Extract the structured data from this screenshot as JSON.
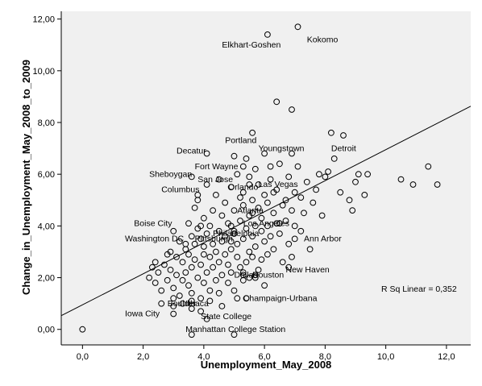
{
  "chart_data": {
    "type": "scatter",
    "title": "",
    "xlabel": "Unemployment_May_2008",
    "ylabel": "Change_in_Unemployment_May_2008_to_2009",
    "xlim": [
      -0.7,
      12.8
    ],
    "ylim": [
      -0.6,
      12.3
    ],
    "x_ticks": [
      "0,0",
      "2,0",
      "4,0",
      "6,0",
      "8,0",
      "10,0",
      "12,0"
    ],
    "y_ticks": [
      "0,00",
      "2,00",
      "4,00",
      "6,00",
      "8,00",
      "10,00",
      "12,00"
    ],
    "x_tick_values": [
      0,
      2,
      4,
      6,
      8,
      10,
      12
    ],
    "y_tick_values": [
      0,
      2,
      4,
      6,
      8,
      10,
      12
    ],
    "background_color": "#f0f0f0",
    "marker": "open-circle",
    "fit_line": {
      "type": "linear",
      "intercept": 0.95,
      "slope": 0.6
    },
    "r_squared_text": "R Sq Linear = 0,352",
    "labeled_points": [
      {
        "label": "Kokomo",
        "x": 7.1,
        "y": 11.7,
        "label_x": 7.4,
        "label_y": 11.1
      },
      {
        "label": "Elkhart-Goshen",
        "x": 6.1,
        "y": 11.4,
        "label_x": 4.6,
        "label_y": 10.9
      },
      {
        "label": "Detroit",
        "x": 8.2,
        "y": 7.6,
        "label_x": 8.2,
        "label_y": 6.9
      },
      {
        "label": "Portland",
        "x": 5.6,
        "y": 7.6,
        "label_x": 4.7,
        "label_y": 7.2
      },
      {
        "label": "Youngstown",
        "x": 6.9,
        "y": 6.8,
        "label_x": 5.8,
        "label_y": 6.9
      },
      {
        "label": "Decatur",
        "x": 4.1,
        "y": 6.8,
        "label_x": 3.1,
        "label_y": 6.8
      },
      {
        "label": "Fort Wayne",
        "x": 5.3,
        "y": 6.3,
        "label_x": 3.7,
        "label_y": 6.2
      },
      {
        "label": "Sheboygan",
        "x": 3.6,
        "y": 5.9,
        "label_x": 2.2,
        "label_y": 5.9
      },
      {
        "label": "San Jose",
        "x": 5.5,
        "y": 5.6,
        "label_x": 3.8,
        "label_y": 5.7
      },
      {
        "label": "Orlando",
        "x": 5.3,
        "y": 5.3,
        "label_x": 4.8,
        "label_y": 5.4
      },
      {
        "label": "Las Vegas",
        "x": 6.3,
        "y": 5.3,
        "label_x": 5.8,
        "label_y": 5.5
      },
      {
        "label": "Columbus",
        "x": 3.8,
        "y": 5.2,
        "label_x": 2.6,
        "label_y": 5.3
      },
      {
        "label": "Atlanta",
        "x": 5.6,
        "y": 4.5,
        "label_x": 5.1,
        "label_y": 4.5
      },
      {
        "label": "Los Angeles",
        "x": 6.5,
        "y": 4.1,
        "label_x": 5.3,
        "label_y": 4.0
      },
      {
        "label": "Boise City",
        "x": 3.9,
        "y": 4.0,
        "label_x": 1.7,
        "label_y": 4.0
      },
      {
        "label": "Philadelphia",
        "x": 5.0,
        "y": 3.8,
        "label_x": 4.3,
        "label_y": 3.6
      },
      {
        "label": "Washington DC",
        "x": 3.4,
        "y": 3.3,
        "label_x": 1.4,
        "label_y": 3.4
      },
      {
        "label": "Ann Arbor",
        "x": 7.0,
        "y": 3.5,
        "label_x": 7.3,
        "label_y": 3.4
      },
      {
        "label": "Pittsburgh",
        "x": 4.9,
        "y": 3.4,
        "label_x": 3.7,
        "label_y": 3.4
      },
      {
        "label": "Dallas",
        "x": 5.3,
        "y": 2.2,
        "label_x": 5.0,
        "label_y": 2.0
      },
      {
        "label": "Houston",
        "x": 5.7,
        "y": 2.1,
        "label_x": 5.6,
        "label_y": 2.0
      },
      {
        "label": "New Haven",
        "x": 6.8,
        "y": 2.4,
        "label_x": 6.7,
        "label_y": 2.2
      },
      {
        "label": "Boulder",
        "x": 3.0,
        "y": 1.2,
        "label_x": 2.8,
        "label_y": 0.9
      },
      {
        "label": "Ithaca",
        "x": 3.6,
        "y": 1.1,
        "label_x": 3.4,
        "label_y": 0.9
      },
      {
        "label": "Champaign-Urbana",
        "x": 5.4,
        "y": 1.2,
        "label_x": 5.3,
        "label_y": 1.1
      },
      {
        "label": "Iowa City",
        "x": 3.0,
        "y": 0.6,
        "label_x": 1.4,
        "label_y": 0.5
      },
      {
        "label": "State College",
        "x": 4.1,
        "y": 0.4,
        "label_x": 3.9,
        "label_y": 0.4
      },
      {
        "label": "Manhattan",
        "x": 3.6,
        "y": -0.2,
        "label_x": 3.4,
        "label_y": -0.1
      },
      {
        "label": "College Station",
        "x": 5.0,
        "y": -0.2,
        "label_x": 4.8,
        "label_y": -0.1
      }
    ],
    "points": [
      [
        0.0,
        0.0
      ],
      [
        2.2,
        2.0
      ],
      [
        2.3,
        2.4
      ],
      [
        2.4,
        1.8
      ],
      [
        2.5,
        2.2
      ],
      [
        2.6,
        1.5
      ],
      [
        2.7,
        2.5
      ],
      [
        2.8,
        1.9
      ],
      [
        2.9,
        2.3
      ],
      [
        2.9,
        3.0
      ],
      [
        3.0,
        0.9
      ],
      [
        3.0,
        1.6
      ],
      [
        3.1,
        2.1
      ],
      [
        3.1,
        2.8
      ],
      [
        3.2,
        1.3
      ],
      [
        3.2,
        3.4
      ],
      [
        3.3,
        2.6
      ],
      [
        3.3,
        1.9
      ],
      [
        3.4,
        2.2
      ],
      [
        3.4,
        3.1
      ],
      [
        3.5,
        1.7
      ],
      [
        3.5,
        2.9
      ],
      [
        3.5,
        4.1
      ],
      [
        3.6,
        2.4
      ],
      [
        3.6,
        3.6
      ],
      [
        3.6,
        1.4
      ],
      [
        3.7,
        2.7
      ],
      [
        3.7,
        3.3
      ],
      [
        3.7,
        4.7
      ],
      [
        3.8,
        2.0
      ],
      [
        3.8,
        3.9
      ],
      [
        3.8,
        5.0
      ],
      [
        3.9,
        2.5
      ],
      [
        3.9,
        1.2
      ],
      [
        3.9,
        3.5
      ],
      [
        4.0,
        2.9
      ],
      [
        4.0,
        4.3
      ],
      [
        4.0,
        1.8
      ],
      [
        4.0,
        3.2
      ],
      [
        4.1,
        2.2
      ],
      [
        4.1,
        3.7
      ],
      [
        4.1,
        5.6
      ],
      [
        4.2,
        1.5
      ],
      [
        4.2,
        2.8
      ],
      [
        4.2,
        4.0
      ],
      [
        4.3,
        3.3
      ],
      [
        4.3,
        2.4
      ],
      [
        4.3,
        4.6
      ],
      [
        4.4,
        1.9
      ],
      [
        4.4,
        3.0
      ],
      [
        4.4,
        5.2
      ],
      [
        4.5,
        2.6
      ],
      [
        4.5,
        3.8
      ],
      [
        4.5,
        1.4
      ],
      [
        4.6,
        3.4
      ],
      [
        4.6,
        4.4
      ],
      [
        4.6,
        2.1
      ],
      [
        4.7,
        2.9
      ],
      [
        4.7,
        4.9
      ],
      [
        4.7,
        3.6
      ],
      [
        4.8,
        1.8
      ],
      [
        4.8,
        2.5
      ],
      [
        4.8,
        4.1
      ],
      [
        4.9,
        3.1
      ],
      [
        4.9,
        5.5
      ],
      [
        4.9,
        2.2
      ],
      [
        5.0,
        3.7
      ],
      [
        5.0,
        4.6
      ],
      [
        5.0,
        1.5
      ],
      [
        5.1,
        2.8
      ],
      [
        5.1,
        3.3
      ],
      [
        5.1,
        6.0
      ],
      [
        5.2,
        4.2
      ],
      [
        5.2,
        2.4
      ],
      [
        5.2,
        5.1
      ],
      [
        5.3,
        3.5
      ],
      [
        5.3,
        1.9
      ],
      [
        5.3,
        4.8
      ],
      [
        5.4,
        2.6
      ],
      [
        5.4,
        3.9
      ],
      [
        5.4,
        6.6
      ],
      [
        5.5,
        3.0
      ],
      [
        5.5,
        4.4
      ],
      [
        5.5,
        2.0
      ],
      [
        5.6,
        3.6
      ],
      [
        5.6,
        5.0
      ],
      [
        5.6,
        2.8
      ],
      [
        5.7,
        4.0
      ],
      [
        5.7,
        6.2
      ],
      [
        5.7,
        3.2
      ],
      [
        5.8,
        2.3
      ],
      [
        5.8,
        4.7
      ],
      [
        5.8,
        5.6
      ],
      [
        5.9,
        3.8
      ],
      [
        5.9,
        2.7
      ],
      [
        5.9,
        4.3
      ],
      [
        6.0,
        3.4
      ],
      [
        6.0,
        6.8
      ],
      [
        6.0,
        5.2
      ],
      [
        6.1,
        4.0
      ],
      [
        6.1,
        2.9
      ],
      [
        6.1,
        4.9
      ],
      [
        6.2,
        3.6
      ],
      [
        6.2,
        5.8
      ],
      [
        6.3,
        4.5
      ],
      [
        6.3,
        3.1
      ],
      [
        6.4,
        5.4
      ],
      [
        6.4,
        4.1
      ],
      [
        6.5,
        3.7
      ],
      [
        6.5,
        6.4
      ],
      [
        6.6,
        4.8
      ],
      [
        6.6,
        2.6
      ],
      [
        6.7,
        5.0
      ],
      [
        6.7,
        4.2
      ],
      [
        6.8,
        3.3
      ],
      [
        6.8,
        5.9
      ],
      [
        6.9,
        4.6
      ],
      [
        6.9,
        2.8
      ],
      [
        7.0,
        5.3
      ],
      [
        7.0,
        4.0
      ],
      [
        7.1,
        6.3
      ],
      [
        7.2,
        3.8
      ],
      [
        7.2,
        5.1
      ],
      [
        7.3,
        4.5
      ],
      [
        7.4,
        5.7
      ],
      [
        7.5,
        3.1
      ],
      [
        7.6,
        4.9
      ],
      [
        7.7,
        5.4
      ],
      [
        7.8,
        6.0
      ],
      [
        7.9,
        4.4
      ],
      [
        8.0,
        5.9
      ],
      [
        8.1,
        6.1
      ],
      [
        8.3,
        6.6
      ],
      [
        8.5,
        5.3
      ],
      [
        8.6,
        7.5
      ],
      [
        8.8,
        5.0
      ],
      [
        8.9,
        4.6
      ],
      [
        9.0,
        5.7
      ],
      [
        9.1,
        6.0
      ],
      [
        9.3,
        5.2
      ],
      [
        9.4,
        6.0
      ],
      [
        10.5,
        5.8
      ],
      [
        10.9,
        5.6
      ],
      [
        11.4,
        6.3
      ],
      [
        11.7,
        5.6
      ],
      [
        6.4,
        8.8
      ],
      [
        6.9,
        8.5
      ],
      [
        3.0,
        3.8
      ],
      [
        2.8,
        2.9
      ],
      [
        3.3,
        1.0
      ],
      [
        4.5,
        5.8
      ],
      [
        5.0,
        6.7
      ],
      [
        5.5,
        5.9
      ],
      [
        6.2,
        6.3
      ],
      [
        4.9,
        4.0
      ],
      [
        5.3,
        2.1
      ],
      [
        5.7,
        2.0
      ],
      [
        4.2,
        1.1
      ],
      [
        3.9,
        0.7
      ],
      [
        4.6,
        0.9
      ],
      [
        6.0,
        1.7
      ],
      [
        5.1,
        1.2
      ],
      [
        3.6,
        0.8
      ],
      [
        2.6,
        1.0
      ],
      [
        2.4,
        2.6
      ]
    ]
  }
}
